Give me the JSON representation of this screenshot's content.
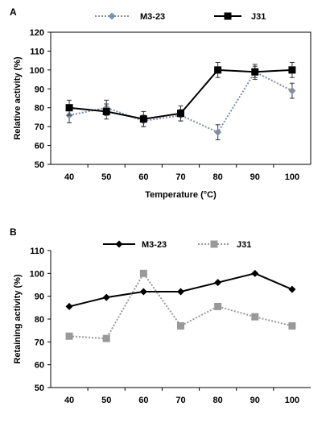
{
  "chart_data": [
    {
      "panel_label": "A",
      "type": "line",
      "categories": [
        "40",
        "50",
        "60",
        "70",
        "80",
        "90",
        "100"
      ],
      "series": [
        {
          "name": "M3-23",
          "values": [
            76,
            80,
            73,
            76,
            67,
            99,
            89
          ],
          "errors": [
            4,
            4,
            3,
            3,
            4,
            4,
            4
          ],
          "color": "#7f8fa6",
          "style": "dotted",
          "marker": "diamond"
        },
        {
          "name": "J31",
          "values": [
            80,
            78,
            74,
            77,
            100,
            99,
            100
          ],
          "errors": [
            4,
            4,
            4,
            4,
            4,
            3,
            4
          ],
          "color": "#000000",
          "style": "solid",
          "marker": "square"
        }
      ],
      "ylim": [
        50,
        120
      ],
      "yticks": [
        "50",
        "60",
        "70",
        "80",
        "90",
        "100",
        "110",
        "120"
      ],
      "xlabel": "Temperature (°C)",
      "ylabel": "Relative activity (%)",
      "legend": "top"
    },
    {
      "panel_label": "B",
      "type": "line",
      "categories": [
        "40",
        "50",
        "60",
        "70",
        "80",
        "90",
        "100"
      ],
      "series": [
        {
          "name": "M3-23",
          "values": [
            85.5,
            89.5,
            92,
            92,
            96,
            100,
            93
          ],
          "color": "#000000",
          "style": "solid",
          "marker": "diamond"
        },
        {
          "name": "J31",
          "values": [
            72.5,
            71.5,
            100,
            77,
            85.5,
            81,
            77
          ],
          "color": "#999999",
          "style": "dotted",
          "marker": "square"
        }
      ],
      "ylim": [
        50,
        110
      ],
      "yticks": [
        "50",
        "60",
        "70",
        "80",
        "90",
        "100",
        "110"
      ],
      "xlabel": "",
      "ylabel": "Retaining activity  (%)",
      "legend": "top"
    }
  ]
}
